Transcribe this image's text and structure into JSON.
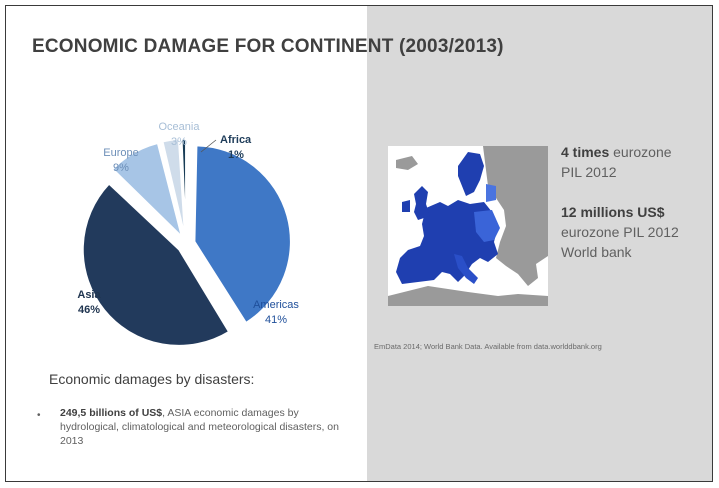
{
  "slide": {
    "title": "ECONOMIC DAMAGE FOR CONTINENT (2003/2013)",
    "facts": [
      {
        "bold": "4 times",
        "rest": "eurozone",
        "line2": "PIL 2012"
      },
      {
        "bold": "12 millions US$",
        "line2": "eurozone PIL 2012",
        "line3": "World bank"
      }
    ],
    "source": "EmData 2014; World Bank Data. Available from data.worlddbank.org",
    "subheading": "Economic damages by disasters:",
    "bullet": {
      "marker": "•",
      "bold": "249,5 billions of US$",
      "rest": ", ASIA economic damages by hydrological, climatological and meteorological disasters, on 2013"
    }
  },
  "colors": {
    "right_panel": "#d9d9d9",
    "title": "#404040",
    "map_eu": "#1f3fb0",
    "map_other": "#9a9a9a"
  },
  "chart_data": {
    "type": "pie",
    "title": "",
    "slices": [
      {
        "label": "Africa",
        "value": 1,
        "pct_label": "1%",
        "color": "#173b55"
      },
      {
        "label": "Americas",
        "value": 41,
        "pct_label": "41%",
        "color": "#3f78c6"
      },
      {
        "label": "Asia",
        "value": 46,
        "pct_label": "46%",
        "color": "#223a5c"
      },
      {
        "label": "Europe",
        "value": 9,
        "pct_label": "9%",
        "color": "#a7c5e6"
      },
      {
        "label": "Oceania",
        "value": 3,
        "pct_label": "3%",
        "color": "#cfdcea"
      }
    ]
  }
}
